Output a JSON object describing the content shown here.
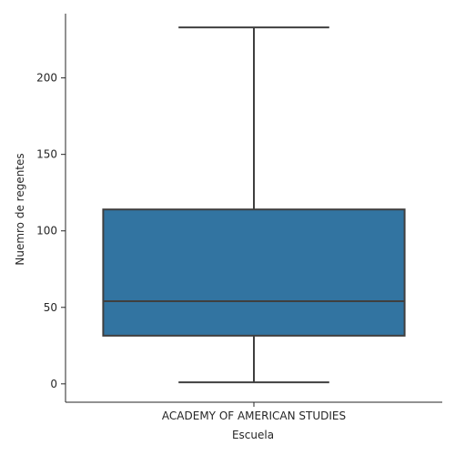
{
  "chart_data": {
    "type": "box",
    "xlabel": "Escuela",
    "ylabel": "Nuemro de regentes",
    "ylim": [
      -12,
      242
    ],
    "yticks": [
      0,
      50,
      100,
      150,
      200
    ],
    "categories": [
      "ACADEMY OF AMERICAN STUDIES"
    ],
    "boxes": [
      {
        "category": "ACADEMY OF AMERICAN STUDIES",
        "whisker_low": 1,
        "q1": 31.5,
        "median": 54,
        "q3": 114,
        "whisker_high": 233
      }
    ],
    "colors": {
      "box_fill": "#3274a1",
      "line": "#3f3f3f",
      "axis": "#262626"
    },
    "grid": false
  }
}
